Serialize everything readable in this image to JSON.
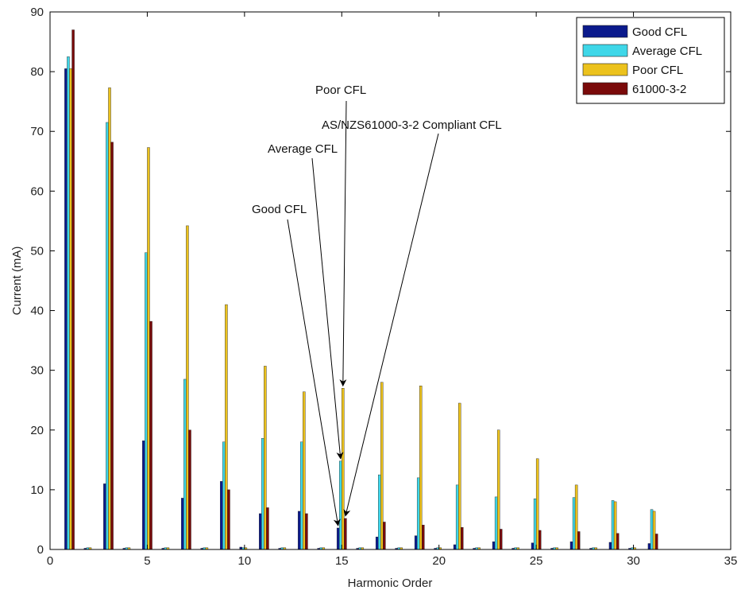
{
  "chart_data": {
    "type": "bar",
    "title": "",
    "xlabel": "Harmonic Order",
    "ylabel": "Current (mA)",
    "xlim": [
      0,
      35
    ],
    "ylim": [
      0,
      90
    ],
    "xticks": [
      "0",
      "5",
      "10",
      "15",
      "20",
      "25",
      "30",
      "35"
    ],
    "yticks": [
      "0",
      "10",
      "20",
      "30",
      "40",
      "50",
      "60",
      "70",
      "80",
      "90"
    ],
    "grid": false,
    "legend_position": "top-right",
    "x": [
      1,
      2,
      3,
      4,
      5,
      6,
      7,
      8,
      9,
      10,
      11,
      12,
      13,
      14,
      15,
      16,
      17,
      18,
      19,
      20,
      21,
      22,
      23,
      24,
      25,
      26,
      27,
      28,
      29,
      30,
      31
    ],
    "series": [
      {
        "name": "Good CFL",
        "color": "#0b1a8c",
        "values": [
          80.5,
          0.2,
          11,
          0.2,
          18.2,
          0.2,
          8.6,
          0.2,
          11.4,
          0.4,
          6,
          0.2,
          6.4,
          0.2,
          3.6,
          0.2,
          2.1,
          0.2,
          2.3,
          0.2,
          0.8,
          0.2,
          1.3,
          0.2,
          1.1,
          0.2,
          1.3,
          0.2,
          1.2,
          0.2,
          1
        ]
      },
      {
        "name": "Average CFL",
        "color": "#3fd7e8",
        "values": [
          82.5,
          0.3,
          71.5,
          0.3,
          49.7,
          0.3,
          28.5,
          0.3,
          18,
          0.3,
          18.6,
          0.3,
          18,
          0.3,
          14.8,
          0.3,
          12.5,
          0.3,
          12,
          0.3,
          10.8,
          0.3,
          8.8,
          0.3,
          8.5,
          0.3,
          8.7,
          0.3,
          8.2,
          0.3,
          6.7
        ]
      },
      {
        "name": "Poor CFL",
        "color": "#ecc21d",
        "values": [
          80.5,
          0.3,
          77.3,
          0.3,
          67.3,
          0.3,
          54.2,
          0.3,
          41,
          0.3,
          30.7,
          0.3,
          26.4,
          0.3,
          27,
          0.3,
          28,
          0.3,
          27.4,
          0.3,
          24.5,
          0.3,
          20,
          0.3,
          15.2,
          0.3,
          10.8,
          0.3,
          8,
          0.3,
          6.4
        ]
      },
      {
        "name": "61000-3-2",
        "color": "#7a0a0a",
        "values": [
          87,
          null,
          68.2,
          null,
          38.2,
          null,
          20,
          null,
          10,
          null,
          7,
          null,
          6,
          null,
          5.2,
          null,
          4.6,
          null,
          4.1,
          null,
          3.7,
          null,
          3.4,
          null,
          3.2,
          null,
          3,
          null,
          2.7,
          null,
          2.6
        ]
      }
    ],
    "annotations": [
      {
        "text": "Poor CFL",
        "target_x": 15,
        "target_y": 27
      },
      {
        "text": "AS/NZS61000-3-2 Compliant CFL",
        "target_x": 15,
        "target_y": 5.2
      },
      {
        "text": "Average CFL",
        "target_x": 15,
        "target_y": 14.8
      },
      {
        "text": "Good CFL",
        "target_x": 15,
        "target_y": 3.6
      }
    ]
  }
}
